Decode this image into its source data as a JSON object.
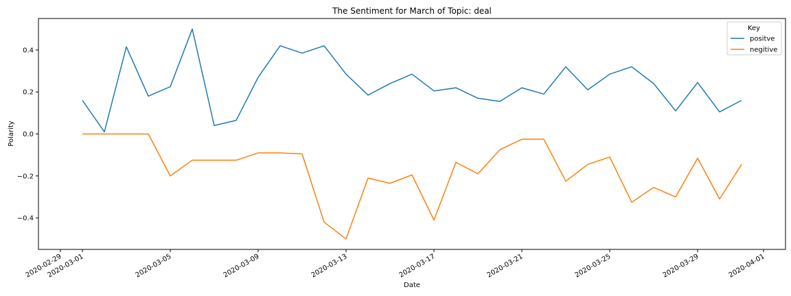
{
  "chart_data": {
    "type": "line",
    "title": "The Sentiment for March of Topic: deal",
    "xlabel": "Date",
    "ylabel": "Polarity",
    "xlim": [
      "2020-02-28",
      "2020-04-02"
    ],
    "ylim": [
      -0.55,
      0.55
    ],
    "x_ticks": [
      "2020-02-29",
      "2020-03-01",
      "2020-03-05",
      "2020-03-09",
      "2020-03-13",
      "2020-03-17",
      "2020-03-21",
      "2020-03-25",
      "2020-03-29",
      "2020-04-01"
    ],
    "y_ticks": [
      -0.4,
      -0.2,
      0.0,
      0.2,
      0.4
    ],
    "y_tick_labels": [
      "−0.4",
      "−0.2",
      "0.0",
      "0.2",
      "0.4"
    ],
    "grid": false,
    "legend": {
      "title": "Key",
      "placement": "top-right"
    },
    "x": [
      "2020-03-01",
      "2020-03-02",
      "2020-03-03",
      "2020-03-04",
      "2020-03-05",
      "2020-03-06",
      "2020-03-07",
      "2020-03-08",
      "2020-03-09",
      "2020-03-10",
      "2020-03-11",
      "2020-03-12",
      "2020-03-13",
      "2020-03-14",
      "2020-03-15",
      "2020-03-16",
      "2020-03-17",
      "2020-03-18",
      "2020-03-19",
      "2020-03-20",
      "2020-03-21",
      "2020-03-22",
      "2020-03-23",
      "2020-03-24",
      "2020-03-25",
      "2020-03-26",
      "2020-03-27",
      "2020-03-28",
      "2020-03-29",
      "2020-03-30",
      "2020-03-31"
    ],
    "series": [
      {
        "name": "positve",
        "color": "#1f77b4",
        "values": [
          0.16,
          0.01,
          0.415,
          0.18,
          0.225,
          0.5,
          0.04,
          0.065,
          0.27,
          0.42,
          0.385,
          0.42,
          0.285,
          0.185,
          0.24,
          0.285,
          0.205,
          0.22,
          0.17,
          0.155,
          0.22,
          0.19,
          0.32,
          0.21,
          0.285,
          0.32,
          0.24,
          0.11,
          0.245,
          0.105,
          0.16
        ]
      },
      {
        "name": "negitive",
        "color": "#ff7f0e",
        "values": [
          0.0,
          0.0,
          0.0,
          0.0,
          -0.2,
          -0.125,
          -0.125,
          -0.125,
          -0.09,
          -0.09,
          -0.095,
          -0.42,
          -0.5,
          -0.21,
          -0.235,
          -0.195,
          -0.41,
          -0.135,
          -0.19,
          -0.075,
          -0.025,
          -0.025,
          -0.225,
          -0.145,
          -0.11,
          -0.325,
          -0.255,
          -0.3,
          -0.115,
          -0.31,
          -0.145
        ]
      }
    ]
  }
}
